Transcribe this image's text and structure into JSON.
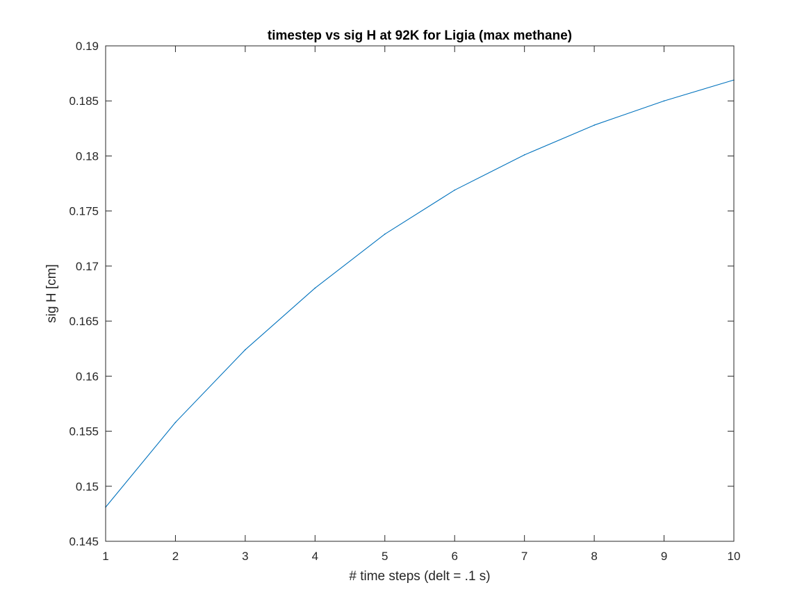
{
  "chart_data": {
    "type": "line",
    "title": "timestep vs sig H at 92K for Ligia (max methane)",
    "xlabel": "# time steps (delt = .1 s)",
    "ylabel": "sig H [cm]",
    "xlim": [
      1,
      10
    ],
    "ylim": [
      0.145,
      0.19
    ],
    "xticks": [
      1,
      2,
      3,
      4,
      5,
      6,
      7,
      8,
      9,
      10
    ],
    "xtick_labels": [
      "1",
      "2",
      "3",
      "4",
      "5",
      "6",
      "7",
      "8",
      "9",
      "10"
    ],
    "yticks": [
      0.145,
      0.15,
      0.155,
      0.16,
      0.165,
      0.17,
      0.175,
      0.18,
      0.185,
      0.19
    ],
    "ytick_labels": [
      "0.145",
      "0.15",
      "0.155",
      "0.16",
      "0.165",
      "0.17",
      "0.175",
      "0.18",
      "0.185",
      "0.19"
    ],
    "grid": false,
    "box": true,
    "series": [
      {
        "color": "#0072bd",
        "x": [
          1,
          2,
          3,
          4,
          5,
          6,
          7,
          8,
          9,
          10
        ],
        "y": [
          0.1481,
          0.1558,
          0.1624,
          0.168,
          0.1729,
          0.1769,
          0.1801,
          0.1828,
          0.185,
          0.1869
        ]
      }
    ]
  }
}
